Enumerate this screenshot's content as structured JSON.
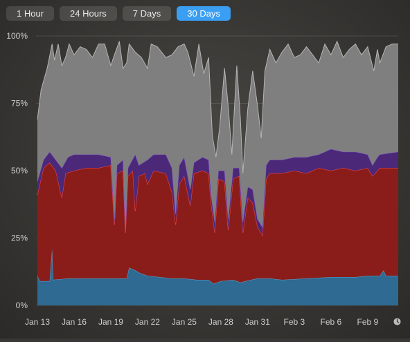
{
  "tabs": [
    {
      "label": "1 Hour",
      "active": false
    },
    {
      "label": "24 Hours",
      "active": false
    },
    {
      "label": "7 Days",
      "active": false
    },
    {
      "label": "30 Days",
      "active": true
    }
  ],
  "colors": {
    "accent": "#3a9ef2",
    "series_blue": "#2e6a91",
    "series_blue_line": "#5fa8d8",
    "series_red": "#8a1d1a",
    "series_red_line": "#ff4a4a",
    "series_purple": "#4b2878",
    "series_purple_line": "#7a4fcf",
    "series_gray": "#7f7f7f",
    "series_gray_line": "#b5b5b5"
  },
  "footer_icon": "clock-icon",
  "chart_data": {
    "type": "area",
    "stacked": true,
    "ylim": [
      0,
      100
    ],
    "y_ticks": [
      {
        "value": 0,
        "label": "0%"
      },
      {
        "value": 25,
        "label": "25%"
      },
      {
        "value": 50,
        "label": "50%"
      },
      {
        "value": 75,
        "label": "75%"
      },
      {
        "value": 100,
        "label": "100%"
      }
    ],
    "x_ticks": [
      "Jan 13",
      "Jan 16",
      "Jan 19",
      "Jan 22",
      "Jan 25",
      "Jan 28",
      "Jan 31",
      "Feb 3",
      "Feb 6",
      "Feb 9"
    ],
    "xlim_days": [
      0,
      29.5
    ],
    "grid": true,
    "series": [
      {
        "key": "blue",
        "points": [
          [
            0,
            11
          ],
          [
            0.2,
            9
          ],
          [
            1,
            9
          ],
          [
            1.2,
            21
          ],
          [
            1.3,
            9.5
          ],
          [
            2.5,
            10
          ],
          [
            4,
            10
          ],
          [
            6,
            10
          ],
          [
            7.3,
            10
          ],
          [
            7.5,
            14
          ],
          [
            8,
            13
          ],
          [
            8.4,
            12
          ],
          [
            9,
            11
          ],
          [
            10,
            10.5
          ],
          [
            11,
            10
          ],
          [
            12,
            10
          ],
          [
            13,
            9.5
          ],
          [
            14,
            9.5
          ],
          [
            14.4,
            8
          ],
          [
            15,
            9
          ],
          [
            16,
            9.5
          ],
          [
            16.6,
            8.5
          ],
          [
            17,
            9
          ],
          [
            18,
            10
          ],
          [
            19,
            10
          ],
          [
            20,
            9.5
          ],
          [
            22,
            10
          ],
          [
            24,
            10.5
          ],
          [
            26,
            10.5
          ],
          [
            27,
            11
          ],
          [
            28,
            11
          ],
          [
            28.3,
            13
          ],
          [
            28.5,
            11
          ],
          [
            29.5,
            11
          ]
        ]
      },
      {
        "key": "red",
        "points": [
          [
            0,
            41
          ],
          [
            0.5,
            51
          ],
          [
            1,
            53
          ],
          [
            1.5,
            50
          ],
          [
            2,
            40
          ],
          [
            2.3,
            49
          ],
          [
            3,
            50
          ],
          [
            4,
            51
          ],
          [
            5,
            51
          ],
          [
            6,
            52
          ],
          [
            6.3,
            30
          ],
          [
            6.5,
            49
          ],
          [
            7,
            50
          ],
          [
            7.2,
            27
          ],
          [
            7.4,
            48
          ],
          [
            7.8,
            50
          ],
          [
            8,
            35
          ],
          [
            8.3,
            48
          ],
          [
            8.8,
            49
          ],
          [
            9,
            45
          ],
          [
            9.5,
            50
          ],
          [
            10.5,
            49
          ],
          [
            11,
            42
          ],
          [
            11.3,
            30
          ],
          [
            11.6,
            45
          ],
          [
            12,
            48
          ],
          [
            12.5,
            37
          ],
          [
            12.8,
            49
          ],
          [
            13.5,
            50
          ],
          [
            14,
            49
          ],
          [
            14.2,
            38
          ],
          [
            14.5,
            27
          ],
          [
            14.8,
            47
          ],
          [
            15.3,
            46
          ],
          [
            15.6,
            28
          ],
          [
            16,
            47
          ],
          [
            16.5,
            48
          ],
          [
            16.8,
            27
          ],
          [
            17.2,
            40
          ],
          [
            17.6,
            38
          ],
          [
            18,
            29
          ],
          [
            18.4,
            26
          ],
          [
            18.7,
            47
          ],
          [
            19,
            49
          ],
          [
            20,
            49
          ],
          [
            21,
            50
          ],
          [
            22,
            49
          ],
          [
            23,
            51
          ],
          [
            24,
            50
          ],
          [
            25,
            51
          ],
          [
            26,
            50
          ],
          [
            27,
            51
          ],
          [
            27.4,
            48
          ],
          [
            27.8,
            50
          ],
          [
            28,
            51
          ],
          [
            29.5,
            51
          ]
        ]
      },
      {
        "key": "purple",
        "points": [
          [
            0,
            46
          ],
          [
            0.5,
            54
          ],
          [
            1,
            57
          ],
          [
            1.5,
            54
          ],
          [
            2,
            51
          ],
          [
            2.5,
            55
          ],
          [
            3,
            56
          ],
          [
            4,
            56
          ],
          [
            5,
            56
          ],
          [
            6,
            55
          ],
          [
            6.3,
            32
          ],
          [
            6.5,
            52
          ],
          [
            7,
            54
          ],
          [
            7.2,
            28
          ],
          [
            7.4,
            51
          ],
          [
            8,
            56
          ],
          [
            8.3,
            52
          ],
          [
            9,
            54
          ],
          [
            9.5,
            56
          ],
          [
            10.5,
            56
          ],
          [
            11,
            51
          ],
          [
            11.3,
            34
          ],
          [
            11.6,
            52
          ],
          [
            12,
            55
          ],
          [
            12.5,
            43
          ],
          [
            12.8,
            53
          ],
          [
            13.5,
            55
          ],
          [
            14,
            54
          ],
          [
            14.2,
            41
          ],
          [
            14.5,
            31
          ],
          [
            14.8,
            50
          ],
          [
            15.3,
            50
          ],
          [
            15.6,
            32
          ],
          [
            16,
            51
          ],
          [
            16.5,
            51
          ],
          [
            16.8,
            31
          ],
          [
            17.2,
            44
          ],
          [
            17.6,
            43
          ],
          [
            18,
            32
          ],
          [
            18.4,
            29
          ],
          [
            18.7,
            52
          ],
          [
            19,
            54
          ],
          [
            20,
            54
          ],
          [
            21,
            55
          ],
          [
            22,
            55
          ],
          [
            23,
            56
          ],
          [
            24,
            58
          ],
          [
            25,
            57
          ],
          [
            26,
            57
          ],
          [
            27,
            56
          ],
          [
            27.4,
            52
          ],
          [
            27.8,
            55
          ],
          [
            28,
            56
          ],
          [
            29.5,
            57
          ]
        ]
      },
      {
        "key": "gray",
        "points": [
          [
            0,
            69
          ],
          [
            0.3,
            80
          ],
          [
            0.8,
            88
          ],
          [
            1.2,
            97
          ],
          [
            1.4,
            91
          ],
          [
            1.7,
            97
          ],
          [
            2,
            89
          ],
          [
            2.3,
            92
          ],
          [
            2.6,
            97
          ],
          [
            3,
            93
          ],
          [
            3.5,
            96
          ],
          [
            4,
            95
          ],
          [
            4.5,
            92
          ],
          [
            5,
            97
          ],
          [
            5.5,
            97
          ],
          [
            6,
            89
          ],
          [
            6.3,
            93
          ],
          [
            6.7,
            98
          ],
          [
            7,
            88
          ],
          [
            7.3,
            90
          ],
          [
            7.5,
            97
          ],
          [
            8,
            94
          ],
          [
            8.5,
            92
          ],
          [
            9,
            88
          ],
          [
            9.3,
            97
          ],
          [
            9.8,
            96
          ],
          [
            10.5,
            92
          ],
          [
            11,
            93
          ],
          [
            11.5,
            96
          ],
          [
            12,
            97
          ],
          [
            12.3,
            94
          ],
          [
            12.8,
            85
          ],
          [
            13.2,
            97
          ],
          [
            13.6,
            86
          ],
          [
            14,
            92
          ],
          [
            14.3,
            63
          ],
          [
            14.6,
            55
          ],
          [
            14.9,
            66
          ],
          [
            15.3,
            88
          ],
          [
            15.6,
            74
          ],
          [
            15.9,
            56
          ],
          [
            16.3,
            89
          ],
          [
            16.6,
            69
          ],
          [
            16.8,
            49
          ],
          [
            17.2,
            73
          ],
          [
            17.6,
            87
          ],
          [
            18,
            74
          ],
          [
            18.3,
            62
          ],
          [
            18.6,
            87
          ],
          [
            19,
            95
          ],
          [
            19.5,
            90
          ],
          [
            20,
            94
          ],
          [
            20.5,
            97
          ],
          [
            21,
            92
          ],
          [
            21.5,
            93
          ],
          [
            22,
            96
          ],
          [
            22.5,
            93
          ],
          [
            23,
            90
          ],
          [
            23.5,
            97
          ],
          [
            24,
            93
          ],
          [
            24.5,
            98
          ],
          [
            25,
            92
          ],
          [
            25.5,
            95
          ],
          [
            26,
            97
          ],
          [
            26.5,
            93
          ],
          [
            27,
            96
          ],
          [
            27.5,
            87
          ],
          [
            27.8,
            95
          ],
          [
            28,
            90
          ],
          [
            28.5,
            96
          ],
          [
            29,
            97
          ],
          [
            29.5,
            97
          ]
        ]
      }
    ]
  }
}
